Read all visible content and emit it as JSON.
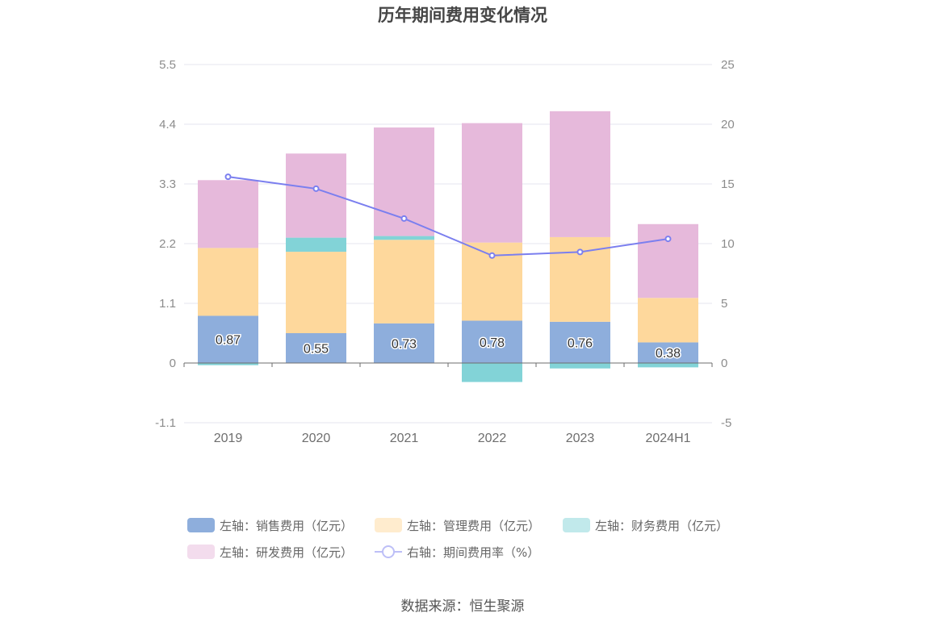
{
  "chart_data": {
    "type": "bar",
    "stacked": true,
    "title": "历年期间费用变化情况",
    "categories": [
      "2019",
      "2020",
      "2021",
      "2022",
      "2023",
      "2024H1"
    ],
    "y_left": {
      "ticks": [
        "5.5",
        "4.4",
        "3.3",
        "2.2",
        "1.1",
        "0",
        "-1.1"
      ],
      "ylim": [
        -1.1,
        5.5
      ]
    },
    "y_right": {
      "ticks": [
        "25",
        "20",
        "15",
        "10",
        "5",
        "0",
        "-5"
      ],
      "ylim": [
        -5,
        25
      ]
    },
    "grid": true,
    "legend_position": "bottom",
    "series": [
      {
        "name": "左轴：销售费用（亿元）",
        "axis": "left",
        "type": "bar",
        "color": "#8eaedc",
        "values": [
          0.87,
          0.55,
          0.73,
          0.78,
          0.76,
          0.38
        ],
        "labels": [
          "0.87",
          "0.55",
          "0.73",
          "0.78",
          "0.76",
          "0.38"
        ]
      },
      {
        "name": "左轴：管理费用（亿元）",
        "axis": "left",
        "type": "bar",
        "color": "#fed89c",
        "values": [
          1.25,
          1.5,
          1.54,
          1.44,
          1.56,
          0.82
        ]
      },
      {
        "name": "左轴：财务费用（亿元）",
        "axis": "left",
        "type": "bar",
        "color": "#82d3d7",
        "values": [
          -0.04,
          0.26,
          0.07,
          -0.35,
          -0.1,
          -0.08
        ]
      },
      {
        "name": "左轴：研发费用（亿元）",
        "axis": "left",
        "type": "bar",
        "color": "#e6b9db",
        "values": [
          1.25,
          1.55,
          2.0,
          2.2,
          2.32,
          1.36
        ]
      },
      {
        "name": "右轴：期间费用率（%）",
        "axis": "right",
        "type": "line",
        "color": "#7b7fef",
        "values": [
          15.6,
          14.6,
          12.1,
          9.0,
          9.3,
          10.4
        ]
      }
    ]
  },
  "source": "数据来源：恒生聚源"
}
